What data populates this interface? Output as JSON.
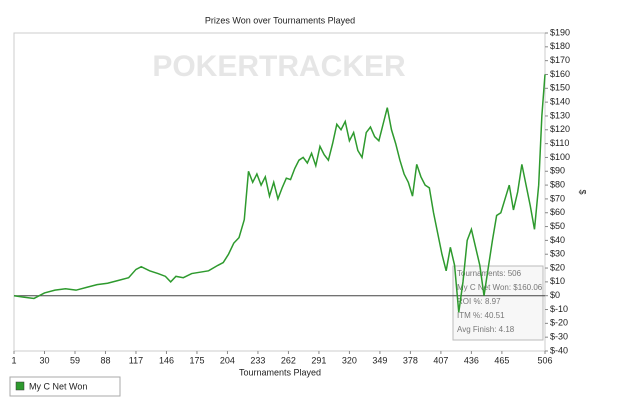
{
  "chart_data": {
    "type": "line",
    "title": "Prizes Won over Tournaments Played",
    "watermark": "POKERTRACKER",
    "x_label": "Tournaments Played",
    "y_label": "$",
    "xlim": [
      1,
      506
    ],
    "ylim": [
      -40,
      190
    ],
    "xticks": [
      1,
      30,
      59,
      88,
      117,
      146,
      175,
      204,
      233,
      262,
      291,
      320,
      349,
      378,
      407,
      436,
      465,
      506
    ],
    "yticks": [
      {
        "value": -40,
        "label": "$-40"
      },
      {
        "value": -30,
        "label": "$-30"
      },
      {
        "value": -20,
        "label": "$-20"
      },
      {
        "value": -10,
        "label": "$-10"
      },
      {
        "value": 0,
        "label": "$0"
      },
      {
        "value": 10,
        "label": "$10"
      },
      {
        "value": 20,
        "label": "$20"
      },
      {
        "value": 30,
        "label": "$30"
      },
      {
        "value": 40,
        "label": "$40"
      },
      {
        "value": 50,
        "label": "$50"
      },
      {
        "value": 60,
        "label": "$60"
      },
      {
        "value": 70,
        "label": "$70"
      },
      {
        "value": 80,
        "label": "$80"
      },
      {
        "value": 90,
        "label": "$90"
      },
      {
        "value": 100,
        "label": "$100"
      },
      {
        "value": 110,
        "label": "$110"
      },
      {
        "value": 120,
        "label": "$120"
      },
      {
        "value": 130,
        "label": "$130"
      },
      {
        "value": 140,
        "label": "$140"
      },
      {
        "value": 150,
        "label": "$150"
      },
      {
        "value": 160,
        "label": "$160"
      },
      {
        "value": 170,
        "label": "$170"
      },
      {
        "value": 180,
        "label": "$180"
      },
      {
        "value": 190,
        "label": "$190"
      }
    ],
    "grid": false,
    "legend": "bottom-left",
    "x": [
      1,
      10,
      20,
      30,
      40,
      50,
      60,
      70,
      80,
      90,
      100,
      110,
      117,
      122,
      130,
      138,
      145,
      150,
      155,
      162,
      170,
      178,
      186,
      195,
      200,
      205,
      210,
      215,
      220,
      224,
      228,
      232,
      236,
      240,
      244,
      248,
      252,
      256,
      260,
      264,
      268,
      272,
      276,
      280,
      284,
      288,
      292,
      296,
      300,
      304,
      308,
      312,
      316,
      320,
      324,
      328,
      332,
      336,
      340,
      344,
      348,
      352,
      356,
      360,
      364,
      368,
      372,
      376,
      380,
      384,
      388,
      392,
      396,
      400,
      404,
      408,
      412,
      416,
      420,
      424,
      428,
      432,
      436,
      440,
      444,
      448,
      452,
      456,
      460,
      464,
      468,
      472,
      476,
      480,
      484,
      488,
      492,
      496,
      500,
      503,
      506
    ],
    "series": [
      {
        "name": "My C Net Won",
        "color": "#2e9a2e",
        "values": [
          0,
          -1,
          -2,
          2,
          4,
          5,
          4,
          6,
          8,
          9,
          11,
          13,
          19,
          21,
          18,
          16,
          14,
          10,
          14,
          13,
          16,
          17,
          18,
          22,
          24,
          30,
          38,
          42,
          55,
          90,
          82,
          88,
          80,
          86,
          72,
          82,
          70,
          78,
          85,
          84,
          92,
          98,
          100,
          96,
          103,
          94,
          108,
          102,
          98,
          110,
          124,
          120,
          126,
          112,
          118,
          105,
          100,
          118,
          122,
          115,
          112,
          124,
          136,
          120,
          110,
          98,
          88,
          82,
          72,
          95,
          86,
          80,
          78,
          60,
          45,
          30,
          18,
          35,
          22,
          -12,
          10,
          40,
          48,
          35,
          22,
          0,
          20,
          40,
          58,
          60,
          70,
          80,
          62,
          75,
          95,
          80,
          65,
          48,
          80,
          130,
          160.06
        ]
      }
    ],
    "tooltip": [
      "Tournaments: 506",
      "My C Net Won: $160.06",
      "ROI %: 8.97",
      "ITM %: 40.51",
      "Avg Finish: 4.18"
    ]
  }
}
